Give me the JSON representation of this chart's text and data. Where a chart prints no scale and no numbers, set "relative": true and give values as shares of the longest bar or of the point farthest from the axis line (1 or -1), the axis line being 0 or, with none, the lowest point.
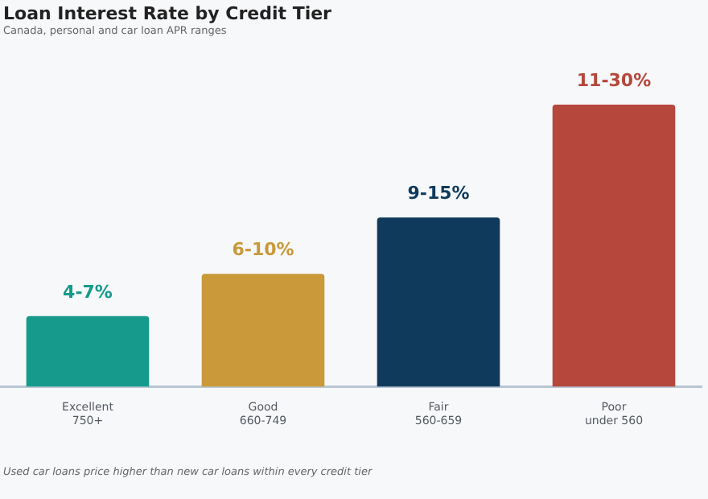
{
  "chart_data": {
    "type": "bar",
    "title": "Loan Interest Rate by Credit Tier",
    "subtitle": "Canada, personal and car loan APR ranges",
    "categories": [
      "Excellent\n750+",
      "Good\n660-749",
      "Fair\n560-659",
      "Poor\nunder 560"
    ],
    "values": [
      0.25,
      0.4,
      0.6,
      1
    ],
    "colors": [
      "#159a8b",
      "#c9993a",
      "#0f3a5c",
      "#b5473c"
    ],
    "relative": true,
    "grid": false,
    "legend": false,
    "annotations": [
      {
        "text": "4-7%",
        "x": "Excellent\n750+",
        "y": 0.25
      },
      {
        "text": "6-10%",
        "x": "Good\n660-749",
        "y": 0.4
      },
      {
        "text": "9-15%",
        "x": "Fair\n560-659",
        "y": 0.6
      },
      {
        "text": "11-30%",
        "x": "Poor\nunder 560",
        "y": 1
      },
      "Used car loans price higher than new car loans within every credit tier"
    ]
  }
}
